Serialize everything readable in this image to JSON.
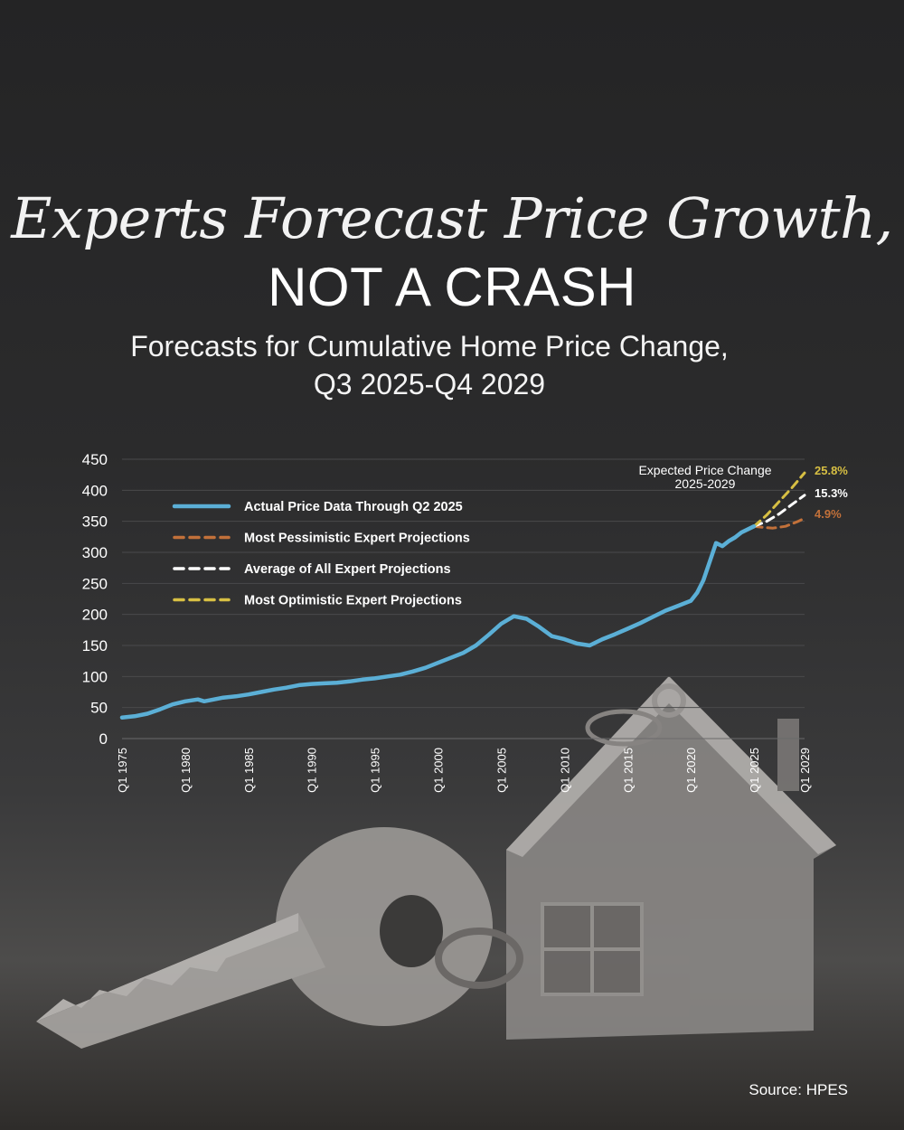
{
  "title": {
    "line1": "Experts Forecast Price Growth,",
    "line2": "NOT A CRASH"
  },
  "subtitle": {
    "line1": "Forecasts for Cumulative Home Price Change,",
    "line2": "Q3 2025-Q4 2029"
  },
  "source": "Source: HPES",
  "chart_data": {
    "type": "line",
    "ylim": [
      0,
      450
    ],
    "yticks": [
      0,
      50,
      100,
      150,
      200,
      250,
      300,
      350,
      400,
      450
    ],
    "xlim": [
      1975,
      2029
    ],
    "xticks": [
      {
        "label": "Q1 1975",
        "x": 1975
      },
      {
        "label": "Q1 1980",
        "x": 1980
      },
      {
        "label": "Q1 1985",
        "x": 1985
      },
      {
        "label": "Q1 1990",
        "x": 1990
      },
      {
        "label": "Q1 1995",
        "x": 1995
      },
      {
        "label": "Q1 2000",
        "x": 2000
      },
      {
        "label": "Q1 2005",
        "x": 2005
      },
      {
        "label": "Q1 2010",
        "x": 2010
      },
      {
        "label": "Q1 2015",
        "x": 2015
      },
      {
        "label": "Q1 2020",
        "x": 2020
      },
      {
        "label": "Q1 2025",
        "x": 2025
      },
      {
        "label": "Q1 2029",
        "x": 2029
      }
    ],
    "grid": true,
    "legend_position": "top-left",
    "annotation": {
      "line1": "Expected Price Change",
      "line2": "2025-2029"
    },
    "series": [
      {
        "name": "Actual Price Data Through Q2 2025",
        "color": "#5bafd6",
        "style": "solid",
        "points": [
          [
            1975,
            34
          ],
          [
            1976,
            36
          ],
          [
            1977,
            40
          ],
          [
            1978,
            47
          ],
          [
            1979,
            55
          ],
          [
            1980,
            60
          ],
          [
            1981,
            63
          ],
          [
            1981.5,
            60
          ],
          [
            1982,
            62
          ],
          [
            1983,
            66
          ],
          [
            1984,
            68
          ],
          [
            1985,
            71
          ],
          [
            1986,
            75
          ],
          [
            1987,
            79
          ],
          [
            1988,
            82
          ],
          [
            1989,
            86
          ],
          [
            1990,
            88
          ],
          [
            1991,
            89
          ],
          [
            1992,
            90
          ],
          [
            1993,
            92
          ],
          [
            1994,
            95
          ],
          [
            1995,
            97
          ],
          [
            1996,
            100
          ],
          [
            1997,
            103
          ],
          [
            1998,
            108
          ],
          [
            1999,
            114
          ],
          [
            2000,
            122
          ],
          [
            2001,
            130
          ],
          [
            2002,
            138
          ],
          [
            2003,
            150
          ],
          [
            2004,
            167
          ],
          [
            2005,
            185
          ],
          [
            2006,
            197
          ],
          [
            2007,
            193
          ],
          [
            2008,
            180
          ],
          [
            2009,
            165
          ],
          [
            2010,
            160
          ],
          [
            2011,
            153
          ],
          [
            2012,
            150
          ],
          [
            2013,
            160
          ],
          [
            2014,
            168
          ],
          [
            2015,
            177
          ],
          [
            2016,
            186
          ],
          [
            2017,
            196
          ],
          [
            2018,
            206
          ],
          [
            2019,
            214
          ],
          [
            2020,
            222
          ],
          [
            2020.5,
            235
          ],
          [
            2021,
            255
          ],
          [
            2021.5,
            285
          ],
          [
            2022,
            315
          ],
          [
            2022.5,
            310
          ],
          [
            2023,
            318
          ],
          [
            2023.5,
            324
          ],
          [
            2024,
            332
          ],
          [
            2025,
            342
          ]
        ]
      },
      {
        "name": "Most  Pessimistic Expert Projections",
        "color": "#c2713a",
        "style": "dashed",
        "end_label": "4.9%",
        "points": [
          [
            2025,
            342
          ],
          [
            2025.8,
            340
          ],
          [
            2026.5,
            339
          ],
          [
            2027.5,
            342
          ],
          [
            2028.5,
            350
          ],
          [
            2029,
            355
          ]
        ]
      },
      {
        "name": "Average of All Expert Projections",
        "color": "#ffffff",
        "style": "dashed",
        "end_label": "15.3%",
        "points": [
          [
            2025,
            342
          ],
          [
            2026,
            350
          ],
          [
            2027,
            362
          ],
          [
            2028,
            377
          ],
          [
            2029,
            392
          ]
        ]
      },
      {
        "name": "Most Optimistic Expert Projections",
        "color": "#d7bf43",
        "style": "dashed",
        "end_label": "25.8%",
        "points": [
          [
            2025,
            342
          ],
          [
            2026,
            360
          ],
          [
            2027,
            382
          ],
          [
            2028,
            404
          ],
          [
            2029,
            428
          ]
        ]
      }
    ]
  }
}
